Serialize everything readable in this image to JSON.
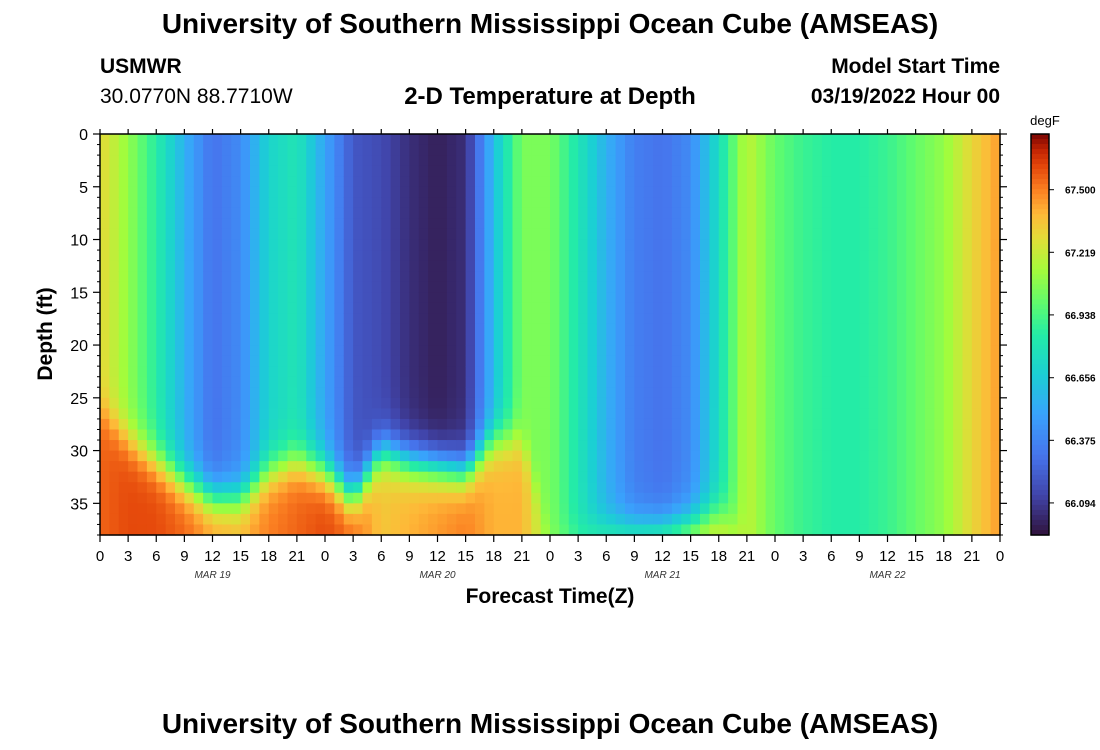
{
  "header": {
    "title": "University of Southern Mississippi Ocean Cube (AMSEAS)",
    "station": "USMWR",
    "coords": "30.0770N  88.7710W",
    "plot_title": "2-D Temperature at Depth",
    "model_label": "Model Start Time",
    "model_date": "03/19/2022 Hour 00"
  },
  "footer": {
    "title": "University of Southern Mississippi Ocean Cube (AMSEAS)"
  },
  "chart_data": {
    "type": "heatmap",
    "title": "2-D Temperature at Depth",
    "xlabel": "Forecast Time(Z)",
    "ylabel": "Depth (ft)",
    "x_range_hours": [
      0,
      96
    ],
    "y_range_ft": [
      0,
      38
    ],
    "x_tick_step_hours": 3,
    "x_tick_labels": [
      "0",
      "3",
      "6",
      "9",
      "12",
      "15",
      "18",
      "21",
      "0",
      "3",
      "6",
      "9",
      "12",
      "15",
      "18",
      "21",
      "0",
      "3",
      "6",
      "9",
      "12",
      "15",
      "18",
      "21",
      "0",
      "3",
      "6",
      "9",
      "12",
      "15",
      "18",
      "21",
      "0"
    ],
    "y_ticks": [
      0,
      5,
      10,
      15,
      20,
      25,
      30,
      35
    ],
    "y_tick_labels": [
      "0",
      "5",
      "10",
      "15",
      "20",
      "25",
      "30",
      "35"
    ],
    "day_labels": [
      {
        "label": "MAR 19",
        "hour": 12
      },
      {
        "label": "MAR 20",
        "hour": 36
      },
      {
        "label": "MAR 21",
        "hour": 60
      },
      {
        "label": "MAR 22",
        "hour": 84
      }
    ],
    "colorbar": {
      "unit": "degF",
      "min": 65.95,
      "max": 67.75,
      "tick_values": [
        66.094,
        66.375,
        66.656,
        66.938,
        67.219,
        67.5
      ],
      "tick_labels": [
        "66.094",
        "66.375",
        "66.656",
        "66.938",
        "67.219",
        "67.500"
      ]
    },
    "time_hours": [
      0,
      3,
      6,
      9,
      12,
      15,
      18,
      21,
      24,
      27,
      30,
      33,
      36,
      39,
      42,
      45,
      48,
      51,
      54,
      57,
      60,
      63,
      66,
      69,
      72,
      75,
      78,
      81,
      84,
      87,
      90,
      93,
      96
    ],
    "surface_temp_degF": [
      67.3,
      67.1,
      66.85,
      66.55,
      66.3,
      66.4,
      66.7,
      66.8,
      66.5,
      66.2,
      66.15,
      66.05,
      66.0,
      66.05,
      66.6,
      67.05,
      67.05,
      66.8,
      66.55,
      66.35,
      66.3,
      66.4,
      66.75,
      67.2,
      67.0,
      66.9,
      66.85,
      66.85,
      66.9,
      67.0,
      67.1,
      67.3,
      67.45
    ],
    "mixed_layer_depth_ft": [
      26,
      29,
      31,
      33,
      34.5,
      34.5,
      32,
      31,
      32,
      34.5,
      30,
      31,
      31.5,
      32,
      29,
      29,
      38,
      38,
      37.5,
      37.5,
      37.5,
      37,
      36,
      38,
      38,
      38,
      38,
      38,
      38,
      38,
      38,
      38,
      38
    ],
    "bottom_temp_degF": [
      67.55,
      67.6,
      67.6,
      67.55,
      67.45,
      67.4,
      67.5,
      67.55,
      67.6,
      67.55,
      67.35,
      67.4,
      67.45,
      67.5,
      67.4,
      67.4,
      67.1,
      66.95,
      67.0,
      67.1,
      67.2,
      67.3,
      67.3,
      67.2,
      67.0,
      66.9,
      66.85,
      66.85,
      66.9,
      67.0,
      67.1,
      67.3,
      67.45
    ]
  }
}
